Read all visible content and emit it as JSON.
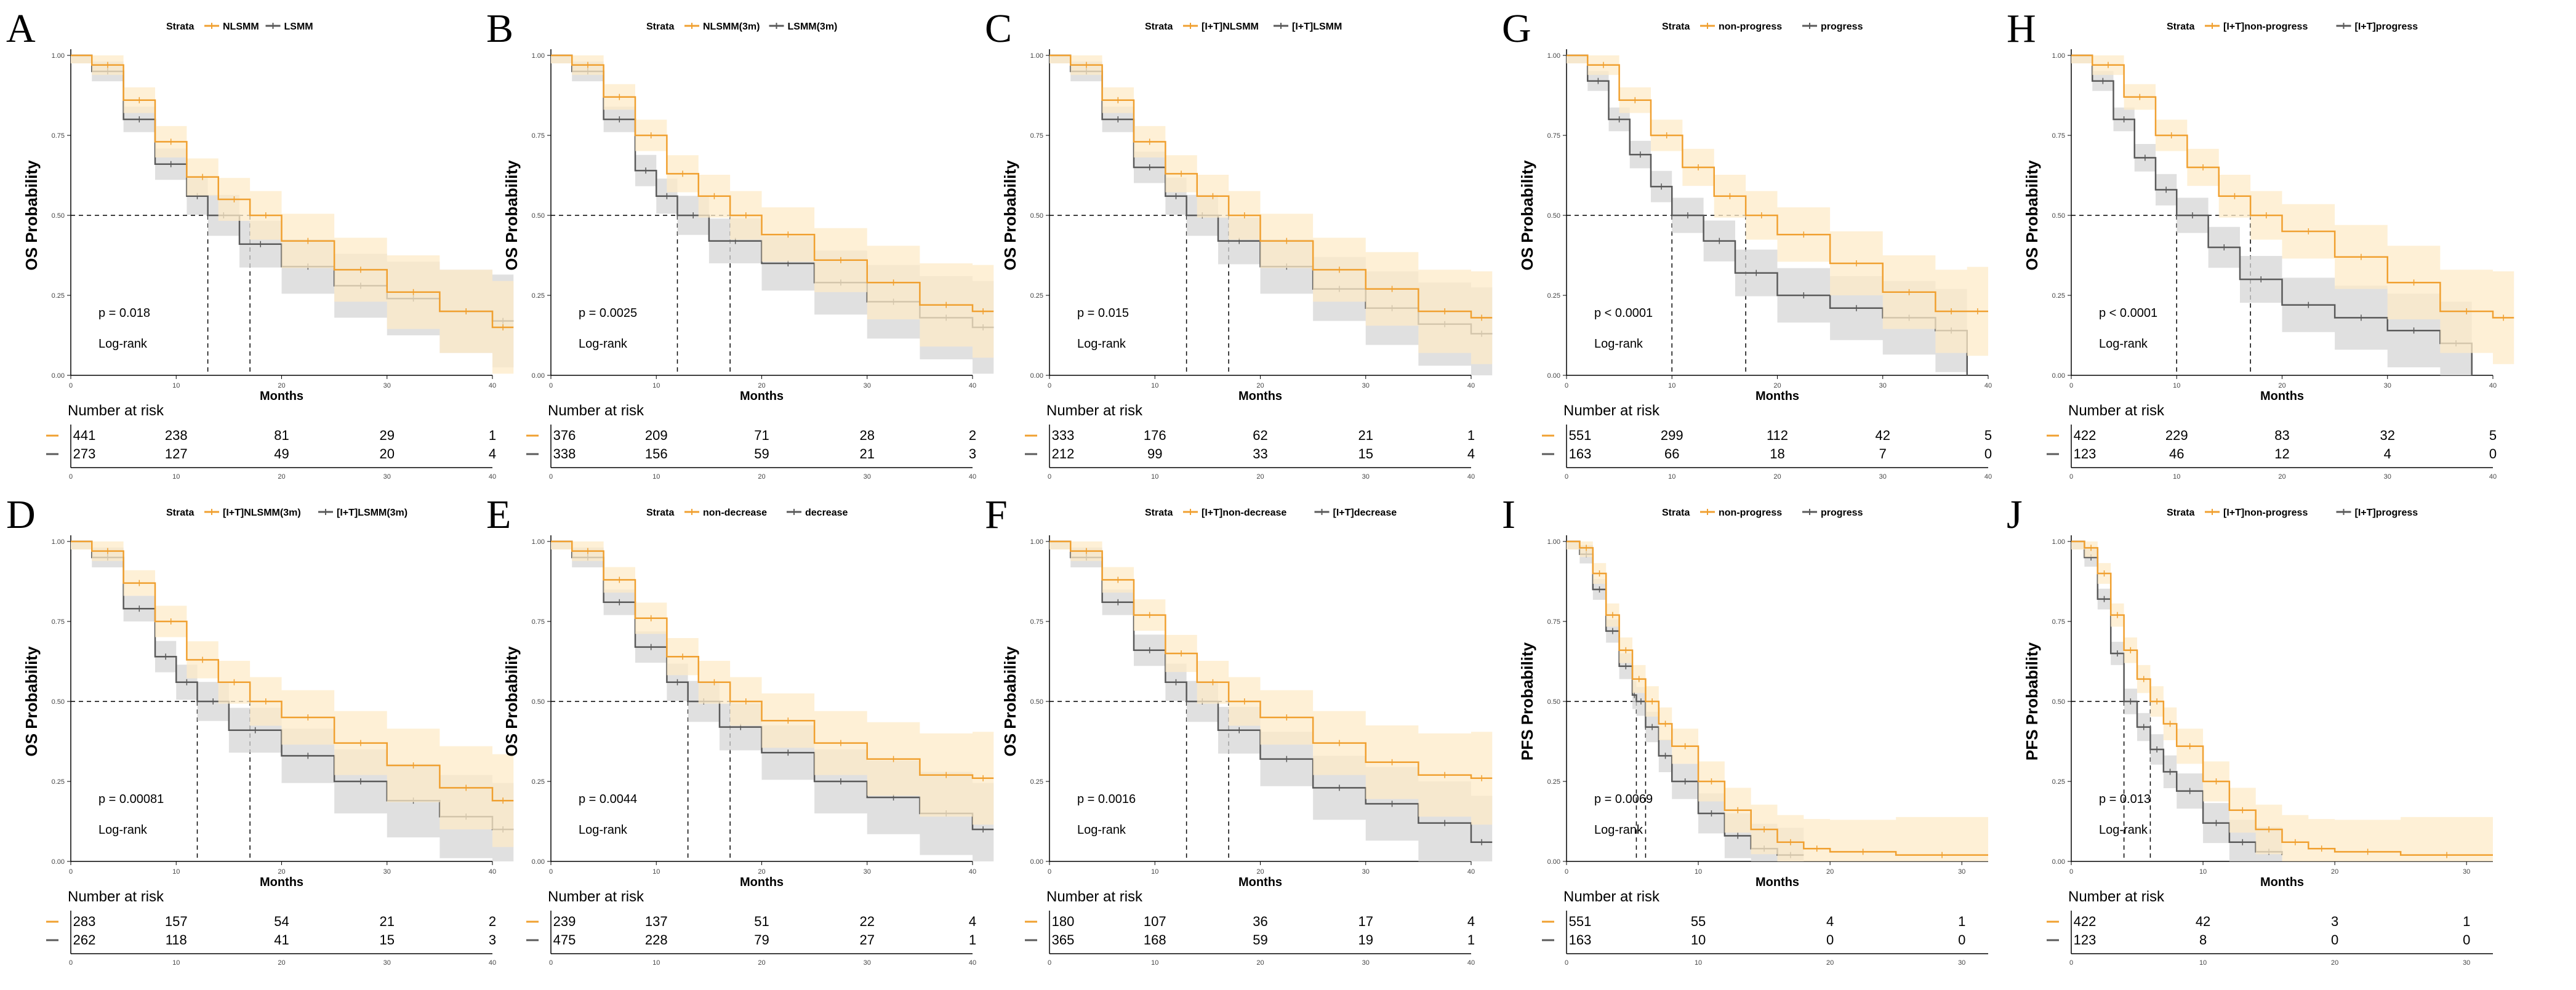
{
  "colors": {
    "orange": "#f0a030",
    "gray": "#5a5a5a",
    "orange_ci": "#fdebc8",
    "gray_ci": "#d6d6d6"
  },
  "common": {
    "strata_label": "Strata",
    "xlabel": "Months",
    "risk_title": "Number at risk",
    "logrank": "Log-rank",
    "yticks": [
      "0.00",
      "0.25",
      "0.50",
      "0.75",
      "1.00"
    ]
  },
  "chart_data": [
    {
      "letter": "A",
      "type": "line",
      "ylabel": "OS Probability",
      "legend": [
        "NLSMM",
        "LSMM"
      ],
      "pvalue": "p = 0.018",
      "xmax": 40,
      "xticks": [
        "0",
        "10",
        "20",
        "30",
        "40"
      ],
      "risk_times": [
        0,
        10,
        20,
        30,
        40
      ],
      "risk": [
        [
          "441",
          "238",
          "81",
          "29",
          "1"
        ],
        [
          "273",
          "127",
          "49",
          "20",
          "4"
        ]
      ],
      "series": [
        {
          "name": "NLSMM",
          "median": 17,
          "x": [
            0,
            2,
            5,
            8,
            11,
            14,
            17,
            20,
            25,
            30,
            35,
            40,
            42
          ],
          "y": [
            1,
            0.97,
            0.86,
            0.73,
            0.62,
            0.55,
            0.5,
            0.42,
            0.33,
            0.26,
            0.2,
            0.15,
            0.15
          ]
        },
        {
          "name": "LSMM",
          "median": 13,
          "x": [
            0,
            2,
            5,
            8,
            11,
            13,
            16,
            20,
            25,
            30,
            35,
            40,
            42
          ],
          "y": [
            1,
            0.95,
            0.8,
            0.66,
            0.56,
            0.5,
            0.41,
            0.34,
            0.28,
            0.24,
            0.2,
            0.17,
            0.17
          ]
        }
      ]
    },
    {
      "letter": "B",
      "type": "line",
      "ylabel": "OS Probability",
      "legend": [
        "NLSMM(3m)",
        "LSMM(3m)"
      ],
      "pvalue": "p = 0.0025",
      "xmax": 40,
      "xticks": [
        "0",
        "10",
        "20",
        "30",
        "40"
      ],
      "risk_times": [
        0,
        10,
        20,
        30,
        40
      ],
      "risk": [
        [
          "376",
          "209",
          "71",
          "28",
          "2"
        ],
        [
          "338",
          "156",
          "59",
          "21",
          "3"
        ]
      ],
      "series": [
        {
          "name": "NLSMM(3m)",
          "median": 17,
          "x": [
            0,
            2,
            5,
            8,
            11,
            14,
            17,
            20,
            25,
            30,
            35,
            40,
            42
          ],
          "y": [
            1,
            0.97,
            0.87,
            0.75,
            0.63,
            0.56,
            0.5,
            0.44,
            0.36,
            0.29,
            0.22,
            0.2,
            0.2
          ]
        },
        {
          "name": "LSMM(3m)",
          "median": 12,
          "x": [
            0,
            2,
            5,
            8,
            10,
            12,
            15,
            20,
            25,
            30,
            35,
            40,
            42
          ],
          "y": [
            1,
            0.95,
            0.8,
            0.64,
            0.56,
            0.5,
            0.42,
            0.35,
            0.29,
            0.23,
            0.18,
            0.15,
            0.15
          ]
        }
      ]
    },
    {
      "letter": "C",
      "type": "line",
      "ylabel": "OS Probability",
      "legend": [
        "[I+T]NLSMM",
        "[I+T]LSMM"
      ],
      "pvalue": "p = 0.015",
      "xmax": 40,
      "xticks": [
        "0",
        "10",
        "20",
        "30",
        "40"
      ],
      "risk_times": [
        0,
        10,
        20,
        30,
        40
      ],
      "risk": [
        [
          "333",
          "176",
          "62",
          "21",
          "1"
        ],
        [
          "212",
          "99",
          "33",
          "15",
          "4"
        ]
      ],
      "series": [
        {
          "name": "[I+T]NLSMM",
          "median": 17,
          "x": [
            0,
            2,
            5,
            8,
            11,
            14,
            17,
            20,
            25,
            30,
            35,
            40,
            42
          ],
          "y": [
            1,
            0.97,
            0.86,
            0.73,
            0.63,
            0.56,
            0.5,
            0.42,
            0.33,
            0.27,
            0.2,
            0.18,
            0.18
          ]
        },
        {
          "name": "[I+T]LSMM",
          "median": 13,
          "x": [
            0,
            2,
            5,
            8,
            11,
            13,
            16,
            20,
            25,
            30,
            35,
            40,
            42
          ],
          "y": [
            1,
            0.95,
            0.8,
            0.65,
            0.56,
            0.5,
            0.42,
            0.34,
            0.27,
            0.21,
            0.16,
            0.13,
            0.13
          ]
        }
      ]
    },
    {
      "letter": "D",
      "type": "line",
      "ylabel": "OS Probability",
      "legend": [
        "[I+T]NLSMM(3m)",
        "[I+T]LSMM(3m)"
      ],
      "pvalue": "p = 0.00081",
      "xmax": 40,
      "xticks": [
        "0",
        "10",
        "20",
        "30",
        "40"
      ],
      "risk_times": [
        0,
        10,
        20,
        30,
        40
      ],
      "risk": [
        [
          "283",
          "157",
          "54",
          "21",
          "2"
        ],
        [
          "262",
          "118",
          "41",
          "15",
          "3"
        ]
      ],
      "series": [
        {
          "name": "[I+T]NLSMM(3m)",
          "median": 17,
          "x": [
            0,
            2,
            5,
            8,
            11,
            14,
            17,
            20,
            25,
            30,
            35,
            40,
            42
          ],
          "y": [
            1,
            0.97,
            0.87,
            0.75,
            0.63,
            0.56,
            0.5,
            0.45,
            0.37,
            0.3,
            0.23,
            0.19,
            0.19
          ]
        },
        {
          "name": "[I+T]LSMM(3m)",
          "median": 12,
          "x": [
            0,
            2,
            5,
            8,
            10,
            12,
            15,
            20,
            25,
            30,
            35,
            40,
            42
          ],
          "y": [
            1,
            0.95,
            0.79,
            0.64,
            0.56,
            0.5,
            0.41,
            0.33,
            0.25,
            0.19,
            0.14,
            0.1,
            0.1
          ]
        }
      ]
    },
    {
      "letter": "E",
      "type": "line",
      "ylabel": "OS Probability",
      "legend": [
        "non-decrease",
        "decrease"
      ],
      "pvalue": "p = 0.0044",
      "xmax": 40,
      "xticks": [
        "0",
        "10",
        "20",
        "30",
        "40"
      ],
      "risk_times": [
        0,
        10,
        20,
        30,
        40
      ],
      "risk": [
        [
          "239",
          "137",
          "51",
          "22",
          "4"
        ],
        [
          "475",
          "228",
          "79",
          "27",
          "1"
        ]
      ],
      "series": [
        {
          "name": "non-decrease",
          "median": 17,
          "x": [
            0,
            2,
            5,
            8,
            11,
            14,
            17,
            20,
            25,
            30,
            35,
            40,
            42
          ],
          "y": [
            1,
            0.97,
            0.88,
            0.76,
            0.64,
            0.56,
            0.5,
            0.44,
            0.37,
            0.32,
            0.27,
            0.26,
            0.26
          ]
        },
        {
          "name": "decrease",
          "median": 13,
          "x": [
            0,
            2,
            5,
            8,
            11,
            13,
            16,
            20,
            25,
            30,
            35,
            40,
            42
          ],
          "y": [
            1,
            0.95,
            0.81,
            0.67,
            0.56,
            0.5,
            0.42,
            0.34,
            0.25,
            0.2,
            0.15,
            0.1,
            0.1
          ]
        }
      ]
    },
    {
      "letter": "F",
      "type": "line",
      "ylabel": "OS Probability",
      "legend": [
        "[I+T]non-decrease",
        "[I+T]decrease"
      ],
      "pvalue": "p = 0.0016",
      "xmax": 40,
      "xticks": [
        "0",
        "10",
        "20",
        "30",
        "40"
      ],
      "risk_times": [
        0,
        10,
        20,
        30,
        40
      ],
      "risk": [
        [
          "180",
          "107",
          "36",
          "17",
          "4"
        ],
        [
          "365",
          "168",
          "59",
          "19",
          "1"
        ]
      ],
      "series": [
        {
          "name": "[I+T]non-decrease",
          "median": 17,
          "x": [
            0,
            2,
            5,
            8,
            11,
            14,
            17,
            20,
            25,
            30,
            35,
            40,
            42
          ],
          "y": [
            1,
            0.97,
            0.88,
            0.77,
            0.65,
            0.56,
            0.5,
            0.45,
            0.37,
            0.31,
            0.27,
            0.26,
            0.26
          ]
        },
        {
          "name": "[I+T]decrease",
          "median": 13,
          "x": [
            0,
            2,
            5,
            8,
            11,
            13,
            16,
            20,
            25,
            30,
            35,
            40,
            42
          ],
          "y": [
            1,
            0.95,
            0.81,
            0.66,
            0.56,
            0.5,
            0.41,
            0.32,
            0.23,
            0.18,
            0.12,
            0.06,
            0.06
          ]
        }
      ]
    },
    {
      "letter": "G",
      "type": "line",
      "ylabel": "OS Probability",
      "legend": [
        "non-progress",
        "progress"
      ],
      "pvalue": "p < 0.0001",
      "xmax": 40,
      "xticks": [
        "0",
        "10",
        "20",
        "30",
        "40"
      ],
      "risk_times": [
        0,
        10,
        20,
        30,
        40
      ],
      "risk": [
        [
          "551",
          "299",
          "112",
          "42",
          "5"
        ],
        [
          "163",
          "66",
          "18",
          "7",
          "0"
        ]
      ],
      "series": [
        {
          "name": "non-progress",
          "median": 17,
          "x": [
            0,
            2,
            5,
            8,
            11,
            14,
            17,
            20,
            25,
            30,
            35,
            38,
            40
          ],
          "y": [
            1,
            0.97,
            0.86,
            0.75,
            0.65,
            0.56,
            0.5,
            0.44,
            0.35,
            0.26,
            0.2,
            0.2,
            0.2
          ]
        },
        {
          "name": "progress",
          "median": 10,
          "x": [
            0,
            2,
            4,
            6,
            8,
            10,
            13,
            16,
            20,
            25,
            30,
            35,
            38
          ],
          "y": [
            1,
            0.92,
            0.8,
            0.69,
            0.59,
            0.5,
            0.42,
            0.32,
            0.25,
            0.21,
            0.18,
            0.14,
            0.0
          ]
        }
      ]
    },
    {
      "letter": "H",
      "type": "line",
      "ylabel": "OS Probability",
      "legend": [
        "[I+T]non-progress",
        "[I+T]progress"
      ],
      "pvalue": "p < 0.0001",
      "xmax": 40,
      "xticks": [
        "0",
        "10",
        "20",
        "30",
        "40"
      ],
      "risk_times": [
        0,
        10,
        20,
        30,
        40
      ],
      "risk": [
        [
          "422",
          "229",
          "83",
          "32",
          "5"
        ],
        [
          "123",
          "46",
          "12",
          "4",
          "0"
        ]
      ],
      "series": [
        {
          "name": "[I+T]non-progress",
          "median": 17,
          "x": [
            0,
            2,
            5,
            8,
            11,
            14,
            17,
            20,
            25,
            30,
            35,
            40,
            42
          ],
          "y": [
            1,
            0.97,
            0.87,
            0.75,
            0.65,
            0.56,
            0.5,
            0.45,
            0.37,
            0.29,
            0.2,
            0.18,
            0.18
          ]
        },
        {
          "name": "[I+T]progress",
          "median": 10,
          "x": [
            0,
            2,
            4,
            6,
            8,
            10,
            13,
            16,
            20,
            25,
            30,
            35,
            38
          ],
          "y": [
            1,
            0.92,
            0.8,
            0.68,
            0.58,
            0.5,
            0.4,
            0.3,
            0.22,
            0.18,
            0.14,
            0.1,
            0.0
          ]
        }
      ]
    },
    {
      "letter": "I",
      "type": "line",
      "ylabel": "PFS Probability",
      "legend": [
        "non-progress",
        "progress"
      ],
      "pvalue": "p = 0.0069",
      "xmax": 32,
      "xticks": [
        "0",
        "10",
        "20",
        "30"
      ],
      "risk_times": [
        0,
        10,
        20,
        30
      ],
      "risk": [
        [
          "551",
          "55",
          "4",
          "1"
        ],
        [
          "163",
          "10",
          "0",
          "0"
        ]
      ],
      "series": [
        {
          "name": "non-progress",
          "median": 6,
          "x": [
            0,
            1,
            2,
            3,
            4,
            5,
            6,
            7,
            8,
            10,
            12,
            14,
            16,
            18,
            20,
            25,
            32
          ],
          "y": [
            1,
            0.98,
            0.9,
            0.77,
            0.66,
            0.57,
            0.5,
            0.43,
            0.36,
            0.25,
            0.16,
            0.1,
            0.06,
            0.04,
            0.03,
            0.02,
            0.02
          ]
        },
        {
          "name": "progress",
          "median": 5.3,
          "x": [
            0,
            1,
            2,
            3,
            4,
            5,
            5.3,
            6,
            7,
            8,
            10,
            12,
            14,
            16,
            18
          ],
          "y": [
            1,
            0.96,
            0.85,
            0.72,
            0.61,
            0.52,
            0.5,
            0.42,
            0.33,
            0.25,
            0.15,
            0.08,
            0.04,
            0.02,
            0.02
          ]
        }
      ]
    },
    {
      "letter": "J",
      "type": "line",
      "ylabel": "PFS Probability",
      "legend": [
        "[I+T]non-progress",
        "[I+T]progress"
      ],
      "pvalue": "p = 0.013",
      "xmax": 32,
      "xticks": [
        "0",
        "10",
        "20",
        "30"
      ],
      "risk_times": [
        0,
        10,
        20,
        30
      ],
      "risk": [
        [
          "422",
          "42",
          "3",
          "1"
        ],
        [
          "123",
          "8",
          "0",
          "0"
        ]
      ],
      "series": [
        {
          "name": "[I+T]non-progress",
          "median": 6,
          "x": [
            0,
            1,
            2,
            3,
            4,
            5,
            6,
            7,
            8,
            10,
            12,
            14,
            16,
            18,
            20,
            25,
            32
          ],
          "y": [
            1,
            0.98,
            0.9,
            0.77,
            0.66,
            0.57,
            0.5,
            0.43,
            0.36,
            0.25,
            0.16,
            0.1,
            0.06,
            0.04,
            0.03,
            0.02,
            0.02
          ]
        },
        {
          "name": "[I+T]progress",
          "median": 4,
          "x": [
            0,
            1,
            2,
            3,
            4,
            5,
            6,
            7,
            8,
            10,
            12,
            14,
            16
          ],
          "y": [
            1,
            0.95,
            0.82,
            0.65,
            0.5,
            0.42,
            0.35,
            0.28,
            0.22,
            0.12,
            0.06,
            0.03,
            0.02
          ]
        }
      ]
    }
  ]
}
